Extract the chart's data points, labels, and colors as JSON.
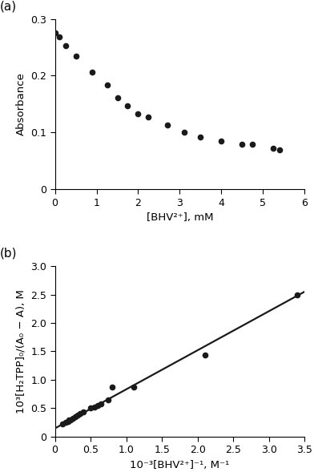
{
  "plot_a": {
    "label": "(a)",
    "x": [
      0.0,
      0.1,
      0.25,
      0.5,
      0.9,
      1.25,
      1.5,
      1.75,
      2.0,
      2.25,
      2.7,
      3.1,
      3.5,
      4.0,
      4.5,
      4.75,
      5.25,
      5.4
    ],
    "y": [
      0.275,
      0.268,
      0.253,
      0.234,
      0.206,
      0.184,
      0.161,
      0.147,
      0.133,
      0.128,
      0.113,
      0.101,
      0.092,
      0.085,
      0.08,
      0.079,
      0.073,
      0.07
    ],
    "xlabel": "[BHV²⁺], mM",
    "ylabel": "Absorbance",
    "xlim": [
      0,
      6
    ],
    "ylim": [
      0,
      0.3
    ],
    "xticks": [
      0,
      1,
      2,
      3,
      4,
      5,
      6
    ],
    "yticks": [
      0,
      0.1,
      0.2,
      0.3
    ],
    "ytick_labels": [
      "0",
      "0.1",
      "0.2",
      "0.3"
    ]
  },
  "plot_b": {
    "label": "(b)",
    "x_data": [
      0.1,
      0.15,
      0.18,
      0.2,
      0.22,
      0.25,
      0.28,
      0.32,
      0.35,
      0.4,
      0.5,
      0.55,
      0.6,
      0.65,
      0.75,
      0.8,
      1.1,
      2.1,
      3.4
    ],
    "y_data": [
      0.22,
      0.25,
      0.27,
      0.29,
      0.3,
      0.32,
      0.35,
      0.38,
      0.4,
      0.44,
      0.5,
      0.52,
      0.55,
      0.57,
      0.65,
      0.87,
      0.87,
      1.44,
      2.5
    ],
    "line_x": [
      0.0,
      3.5
    ],
    "line_y": [
      0.145,
      2.55
    ],
    "xlabel": "10⁻³[BHV²⁺]⁻¹, M⁻¹",
    "ylabel": "10³[H₂TPP]₀/(A₀ − A), M",
    "xlim": [
      0,
      3.5
    ],
    "ylim": [
      0,
      3.0
    ],
    "xticks": [
      0,
      0.5,
      1.0,
      1.5,
      2.0,
      2.5,
      3.0,
      3.5
    ],
    "yticks": [
      0,
      0.5,
      1.0,
      1.5,
      2.0,
      2.5,
      3.0
    ],
    "xtick_labels": [
      "0",
      "0.5",
      "1.0",
      "1.5",
      "2.0",
      "2.5",
      "3.0",
      "3.5"
    ],
    "ytick_labels": [
      "0",
      "0.5",
      "1.0",
      "1.5",
      "2.0",
      "2.5",
      "3.0"
    ]
  },
  "marker_color": "#1a1a1a",
  "marker_size": 5.5,
  "line_color": "#1a1a1a",
  "line_width": 1.6,
  "label_fontsize": 9.5,
  "tick_fontsize": 9,
  "panel_label_fontsize": 11
}
